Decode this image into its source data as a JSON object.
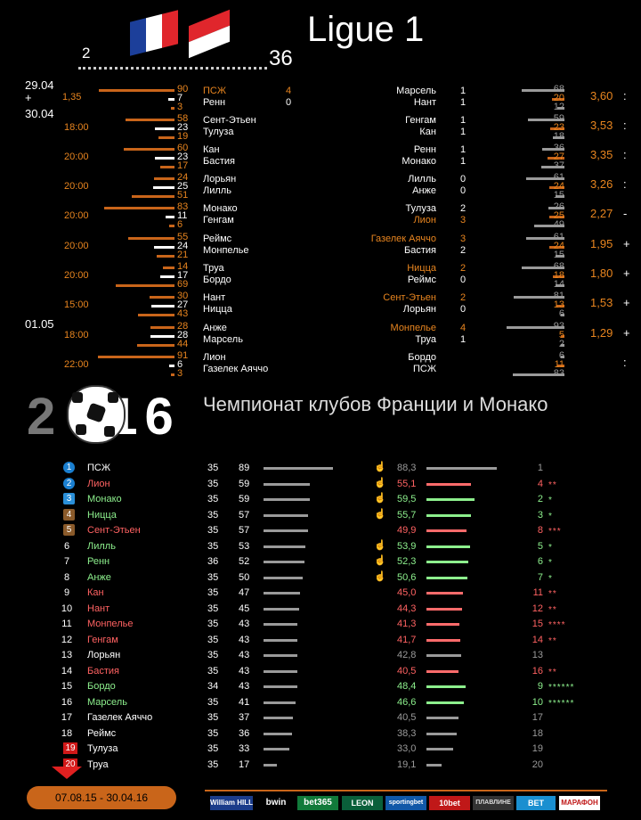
{
  "header": {
    "title": "Ligue 1",
    "round_current": "2",
    "round_total": "36",
    "flags": [
      "france-flag",
      "monaco-flag"
    ]
  },
  "colors": {
    "orange": "#e8851f",
    "gray": "#9a9a9a",
    "green": "#8df08d",
    "red": "#ff6262"
  },
  "left_dates": [
    {
      "label": "29.04",
      "y": 0
    },
    {
      "label": "+",
      "y": 1
    },
    {
      "label": "30.04",
      "y": 2
    },
    {
      "label": "01.05",
      "y": 3
    }
  ],
  "matches_left": [
    {
      "time": "1,35",
      "home": "ПСЖ",
      "away": "Ренн",
      "hs": "4",
      "as": "0",
      "p": [
        "90",
        "7",
        "3"
      ],
      "home_color": "o",
      "hs_color": "o",
      "time_color": "o"
    },
    {
      "time": "18:00",
      "home": "Сент-Этьен",
      "away": "Тулуза",
      "hs": "",
      "as": "",
      "p": [
        "58",
        "23",
        "19"
      ],
      "home_color": "w",
      "hs_color": "w",
      "time_color": "o"
    },
    {
      "time": "20:00",
      "home": "Кан",
      "away": "Бастия",
      "hs": "",
      "as": "",
      "p": [
        "60",
        "23",
        "17"
      ],
      "home_color": "w",
      "hs_color": "w",
      "time_color": "o"
    },
    {
      "time": "20:00",
      "home": "Лорьян",
      "away": "Лилль",
      "hs": "",
      "as": "",
      "p": [
        "24",
        "25",
        "51"
      ],
      "home_color": "w",
      "hs_color": "w",
      "time_color": "o"
    },
    {
      "time": "20:00",
      "home": "Монако",
      "away": "Генгам",
      "hs": "",
      "as": "",
      "p": [
        "83",
        "11",
        "6"
      ],
      "home_color": "w",
      "hs_color": "w",
      "time_color": "o"
    },
    {
      "time": "20:00",
      "home": "Реймс",
      "away": "Монпелье",
      "hs": "",
      "as": "",
      "p": [
        "55",
        "24",
        "21"
      ],
      "home_color": "w",
      "hs_color": "w",
      "time_color": "o"
    },
    {
      "time": "20:00",
      "home": "Труа",
      "away": "Бордо",
      "hs": "",
      "as": "",
      "p": [
        "14",
        "17",
        "69"
      ],
      "home_color": "w",
      "hs_color": "w",
      "time_color": "o"
    },
    {
      "time": "15:00",
      "home": "Нант",
      "away": "Ницца",
      "hs": "",
      "as": "",
      "p": [
        "30",
        "27",
        "43"
      ],
      "home_color": "w",
      "hs_color": "w",
      "time_color": "o"
    },
    {
      "time": "18:00",
      "home": "Анже",
      "away": "Марсель",
      "hs": "",
      "as": "",
      "p": [
        "28",
        "28",
        "44"
      ],
      "home_color": "w",
      "hs_color": "w",
      "time_color": "o"
    },
    {
      "time": "22:00",
      "home": "Лион",
      "away": "Газелек Аяччо",
      "hs": "",
      "as": "",
      "p": [
        "91",
        "6",
        "3"
      ],
      "home_color": "w",
      "hs_color": "w",
      "time_color": "o"
    }
  ],
  "matches_right": [
    {
      "home": "Марсель",
      "away": "Нант",
      "hs": "1",
      "as": "1",
      "p": [
        "68",
        "20",
        "12"
      ],
      "odd": "3,60",
      "sign": ":",
      "hc": "w",
      "ac": "w"
    },
    {
      "home": "Генгам",
      "away": "Кан",
      "hs": "1",
      "as": "1",
      "p": [
        "59",
        "23",
        "18"
      ],
      "odd": "3,53",
      "sign": ":",
      "hc": "w",
      "ac": "w"
    },
    {
      "home": "Ренн",
      "away": "Монако",
      "hs": "1",
      "as": "1",
      "p": [
        "36",
        "27",
        "37"
      ],
      "odd": "3,35",
      "sign": ":",
      "hc": "w",
      "ac": "w"
    },
    {
      "home": "Лилль",
      "away": "Анже",
      "hs": "0",
      "as": "0",
      "p": [
        "61",
        "24",
        "15"
      ],
      "odd": "3,26",
      "sign": ":",
      "hc": "w",
      "ac": "w"
    },
    {
      "home": "Тулуза",
      "away": "Лион",
      "hs": "2",
      "as": "3",
      "p": [
        "26",
        "25",
        "49"
      ],
      "odd": "2,27",
      "sign": "-",
      "hc": "w",
      "ac": "o"
    },
    {
      "home": "Газелек Аяччо",
      "away": "Бастия",
      "hs": "3",
      "as": "2",
      "p": [
        "61",
        "24",
        "15"
      ],
      "odd": "1,95",
      "sign": "+",
      "hc": "o",
      "ac": "w"
    },
    {
      "home": "Ницца",
      "away": "Реймс",
      "hs": "2",
      "as": "0",
      "p": [
        "68",
        "18",
        "14"
      ],
      "odd": "1,80",
      "sign": "+",
      "hc": "o",
      "ac": "w"
    },
    {
      "home": "Сент-Этьен",
      "away": "Лорьян",
      "hs": "2",
      "as": "0",
      "p": [
        "81",
        "13",
        "6"
      ],
      "odd": "1,53",
      "sign": "+",
      "hc": "o",
      "ac": "w"
    },
    {
      "home": "Монпелье",
      "away": "Труа",
      "hs": "4",
      "as": "1",
      "p": [
        "93",
        "5",
        "2"
      ],
      "odd": "1,29",
      "sign": "+",
      "hc": "o",
      "ac": "w"
    },
    {
      "home": "Бордо",
      "away": "ПСЖ",
      "hs": "",
      "as": "",
      "p": [
        "6",
        "11",
        "83"
      ],
      "odd": "",
      "sign": ":",
      "hc": "w",
      "ac": "w"
    }
  ],
  "year_label": {
    "d1": "2",
    "d2": "1",
    "d3": "6"
  },
  "subtitle": "Чемпионат клубов Франции и Монако",
  "table": [
    {
      "pos": "1",
      "team": "ПСЖ",
      "gp": "35",
      "pts": "89",
      "rating": "88,3",
      "thumb": true,
      "rpos": "1",
      "stars": "",
      "tc": "w",
      "rc": "g",
      "badge": "#1a7fd0"
    },
    {
      "pos": "2",
      "team": "Лион",
      "gp": "35",
      "pts": "59",
      "rating": "55,1",
      "thumb": true,
      "rpos": "4",
      "stars": "**",
      "tc": "rd",
      "rc": "rd",
      "badge": "#1a7fd0"
    },
    {
      "pos": "3",
      "team": "Монако",
      "gp": "35",
      "pts": "59",
      "rating": "59,5",
      "thumb": true,
      "rpos": "2",
      "stars": "*",
      "tc": "gr",
      "rc": "gr",
      "badge": "#2a8fd8"
    },
    {
      "pos": "4",
      "team": "Ницца",
      "gp": "35",
      "pts": "57",
      "rating": "55,7",
      "thumb": true,
      "rpos": "3",
      "stars": "*",
      "tc": "gr",
      "rc": "gr",
      "badge": "#8a5a2a"
    },
    {
      "pos": "5",
      "team": "Сент-Этьен",
      "gp": "35",
      "pts": "57",
      "rating": "49,9",
      "thumb": false,
      "rpos": "8",
      "stars": "***",
      "tc": "rd",
      "rc": "rd",
      "badge": "#8a5a2a"
    },
    {
      "pos": "6",
      "team": "Лилль",
      "gp": "35",
      "pts": "53",
      "rating": "53,9",
      "thumb": true,
      "rpos": "5",
      "stars": "*",
      "tc": "gr",
      "rc": "gr",
      "badge": ""
    },
    {
      "pos": "7",
      "team": "Ренн",
      "gp": "36",
      "pts": "52",
      "rating": "52,3",
      "thumb": true,
      "rpos": "6",
      "stars": "*",
      "tc": "gr",
      "rc": "gr",
      "badge": ""
    },
    {
      "pos": "8",
      "team": "Анже",
      "gp": "35",
      "pts": "50",
      "rating": "50,6",
      "thumb": true,
      "rpos": "7",
      "stars": "*",
      "tc": "gr",
      "rc": "gr",
      "badge": ""
    },
    {
      "pos": "9",
      "team": "Кан",
      "gp": "35",
      "pts": "47",
      "rating": "45,0",
      "thumb": false,
      "rpos": "11",
      "stars": "**",
      "tc": "rd",
      "rc": "rd",
      "badge": ""
    },
    {
      "pos": "10",
      "team": "Нант",
      "gp": "35",
      "pts": "45",
      "rating": "44,3",
      "thumb": false,
      "rpos": "12",
      "stars": "**",
      "tc": "rd",
      "rc": "rd",
      "badge": ""
    },
    {
      "pos": "11",
      "team": "Монпелье",
      "gp": "35",
      "pts": "43",
      "rating": "41,3",
      "thumb": false,
      "rpos": "15",
      "stars": "****",
      "tc": "rd",
      "rc": "rd",
      "badge": ""
    },
    {
      "pos": "12",
      "team": "Генгам",
      "gp": "35",
      "pts": "43",
      "rating": "41,7",
      "thumb": false,
      "rpos": "14",
      "stars": "**",
      "tc": "rd",
      "rc": "rd",
      "badge": ""
    },
    {
      "pos": "13",
      "team": "Лорьян",
      "gp": "35",
      "pts": "43",
      "rating": "42,8",
      "thumb": false,
      "rpos": "13",
      "stars": "",
      "tc": "w",
      "rc": "g",
      "badge": ""
    },
    {
      "pos": "14",
      "team": "Бастия",
      "gp": "35",
      "pts": "43",
      "rating": "40,5",
      "thumb": false,
      "rpos": "16",
      "stars": "**",
      "tc": "rd",
      "rc": "rd",
      "badge": ""
    },
    {
      "pos": "15",
      "team": "Бордо",
      "gp": "34",
      "pts": "43",
      "rating": "48,4",
      "thumb": false,
      "rpos": "9",
      "stars": "******",
      "tc": "gr",
      "rc": "gr",
      "badge": ""
    },
    {
      "pos": "16",
      "team": "Марсель",
      "gp": "35",
      "pts": "41",
      "rating": "46,6",
      "thumb": false,
      "rpos": "10",
      "stars": "******",
      "tc": "gr",
      "rc": "gr",
      "badge": ""
    },
    {
      "pos": "17",
      "team": "Газелек Аяччо",
      "gp": "35",
      "pts": "37",
      "rating": "40,5",
      "thumb": false,
      "rpos": "17",
      "stars": "",
      "tc": "w",
      "rc": "g",
      "badge": ""
    },
    {
      "pos": "18",
      "team": "Реймс",
      "gp": "35",
      "pts": "36",
      "rating": "38,3",
      "thumb": false,
      "rpos": "18",
      "stars": "",
      "tc": "w",
      "rc": "g",
      "badge": ""
    },
    {
      "pos": "19",
      "team": "Тулуза",
      "gp": "35",
      "pts": "33",
      "rating": "33,0",
      "thumb": false,
      "rpos": "19",
      "stars": "",
      "tc": "w",
      "rc": "g",
      "badge": "#d01818"
    },
    {
      "pos": "20",
      "team": "Труа",
      "gp": "35",
      "pts": "17",
      "rating": "19,1",
      "thumb": false,
      "rpos": "20",
      "stars": "",
      "tc": "w",
      "rc": "g",
      "badge": "#d01818"
    }
  ],
  "footer": {
    "dates": "07.08.15 - 30.04.16",
    "bookmakers": [
      "William HILL",
      "bwin",
      "bet365",
      "LEON",
      "sportingbet",
      "10bet",
      "ПЛАВЛИНЕ",
      "BET",
      "МАРАФОН"
    ]
  }
}
